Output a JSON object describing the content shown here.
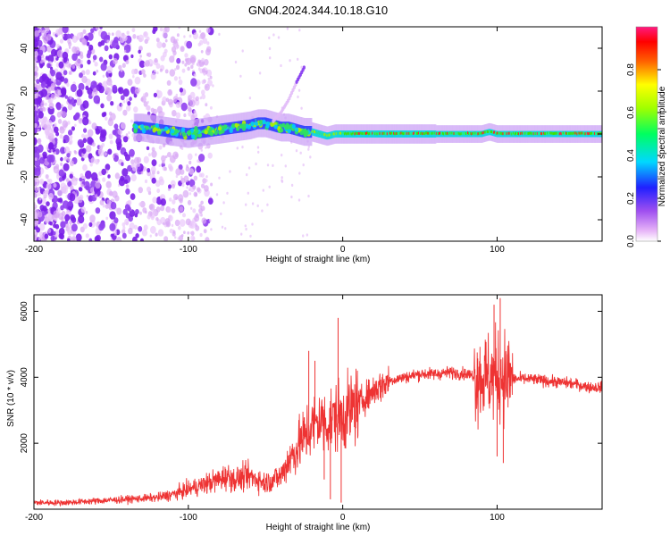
{
  "title": "GN04.2024.344.10.18.G10",
  "chart_data": [
    {
      "type": "heatmap",
      "xlabel": "Height of straight line (km)",
      "ylabel": "Frequency (Hz)",
      "xlim": [
        -200,
        168
      ],
      "ylim": [
        -50,
        50
      ],
      "x_ticks": [
        -200,
        -100,
        0,
        100
      ],
      "y_ticks": [
        -40,
        -20,
        0,
        20,
        40
      ],
      "colorbar": {
        "label": "Normalized spectral amplitude",
        "ticks": [
          0.0,
          0.2,
          0.4,
          0.6,
          0.8
        ],
        "range": [
          0,
          1
        ],
        "colors": [
          "#ffffff",
          "#e8b0f8",
          "#b060f0",
          "#7010e8",
          "#0000ff",
          "#0080ff",
          "#00e0ff",
          "#00ff80",
          "#40ff00",
          "#c0ff00",
          "#ffff00",
          "#ffa000",
          "#ff4000",
          "#ff0000",
          "#ff0080"
        ]
      },
      "ridge": {
        "x": [
          -130,
          -120,
          -110,
          -100,
          -90,
          -80,
          -70,
          -60,
          -55,
          -50,
          -45,
          -40,
          -35,
          -30,
          -25,
          -20,
          -15,
          -10,
          -5,
          0,
          20,
          40,
          60,
          80,
          90,
          95,
          100,
          120,
          140,
          168
        ],
        "y": [
          3,
          2,
          1,
          0,
          1,
          2,
          3,
          4,
          5,
          5,
          4,
          3,
          3,
          2,
          1,
          1,
          0,
          -1,
          0,
          0,
          0,
          0,
          0,
          0,
          0,
          1,
          0,
          0,
          0,
          0
        ]
      },
      "branch": {
        "x": [
          -45,
          -40,
          -35,
          -30,
          -25
        ],
        "y": [
          6,
          10,
          16,
          24,
          31
        ]
      }
    },
    {
      "type": "line",
      "xlabel": "Height of straight line (km)",
      "ylabel": "SNR (10 * v/v)",
      "xlim": [
        -200,
        168
      ],
      "ylim": [
        0,
        6500
      ],
      "x_ticks": [
        -200,
        -100,
        0,
        100
      ],
      "y_ticks": [
        2000,
        4000,
        6000
      ],
      "series": [
        {
          "color": "#ee3333",
          "x": [
            -200,
            -180,
            -160,
            -140,
            -120,
            -110,
            -100,
            -90,
            -80,
            -75,
            -70,
            -60,
            -50,
            -40,
            -35,
            -30,
            -25,
            -20,
            -15,
            -10,
            -5,
            0,
            5,
            10,
            20,
            30,
            40,
            50,
            60,
            70,
            80,
            90,
            95,
            100,
            105,
            110,
            120,
            130,
            140,
            150,
            160,
            168
          ],
          "values": [
            200,
            200,
            250,
            300,
            350,
            450,
            600,
            750,
            900,
            1000,
            900,
            1000,
            800,
            1000,
            1500,
            1800,
            2200,
            2500,
            2700,
            2600,
            2800,
            2800,
            3000,
            3200,
            3600,
            3900,
            4000,
            4100,
            4100,
            4150,
            4100,
            4000,
            4000,
            4050,
            4050,
            3950,
            3950,
            3900,
            3850,
            3800,
            3700,
            3700
          ]
        }
      ]
    }
  ]
}
